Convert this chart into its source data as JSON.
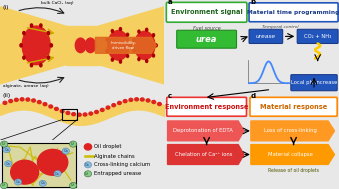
{
  "bg_color": "#e8e8e8",
  "panel_i_bg": "#b8d8e8",
  "panel_ii_bg": "#b8d8e8",
  "channel_color": "#f5d060",
  "oil_color": "#dd2222",
  "oil_dot_color": "#cc0000",
  "arrow_orange": "#e87020",
  "immis_box_color": "#e06820",
  "panel_a_bg": "#c8e8c0",
  "panel_b_bg": "#b0cce8",
  "panel_c_bg": "#f0c8c8",
  "panel_d_bg": "#e8e8b0",
  "env_signal_text": "Environment signal",
  "mat_time_text": "Material time programming",
  "env_response_text": "Environment response",
  "mat_response_text": "Material response",
  "fuel_source": "Fuel source",
  "urea_text": "urea",
  "temporal_control": "Temporal control",
  "urease_text": "urease",
  "co2_nh3": "CO₂ + NH₃",
  "local_ph": "Local pH increase",
  "deprot_edta": "Deprotonation of EDTA",
  "chelation": "Chelation of Ca²⁺ ions",
  "loss_crosslink": "Loss of cross-linking",
  "mat_collapse": "Material collapse",
  "release_oil": "Release of oil droplets",
  "legend_oil": "Oil droplet",
  "legend_alginate": "Alginate chains",
  "legend_calcium": "Cross-linking calcium",
  "legend_urease": "Entrapped urease",
  "urea_green": "#33bb33",
  "blue_box": "#2255bb",
  "blue_box2": "#3366cc",
  "env_resp_red": "#ee3333",
  "dep_red": "#ee4444",
  "chel_red": "#dd2222",
  "mat_orange": "#ff8800",
  "loss_orange": "#ff9922",
  "collapse_orange": "#ff9900",
  "wavy_color": "#ffcc00",
  "ca_color": "#88bbdd",
  "ur_color": "#88cc88",
  "legend_inset_bg": "#e8e8b8",
  "inset_bg": "#d8d8a0",
  "black": "#111111",
  "gray": "#888888"
}
